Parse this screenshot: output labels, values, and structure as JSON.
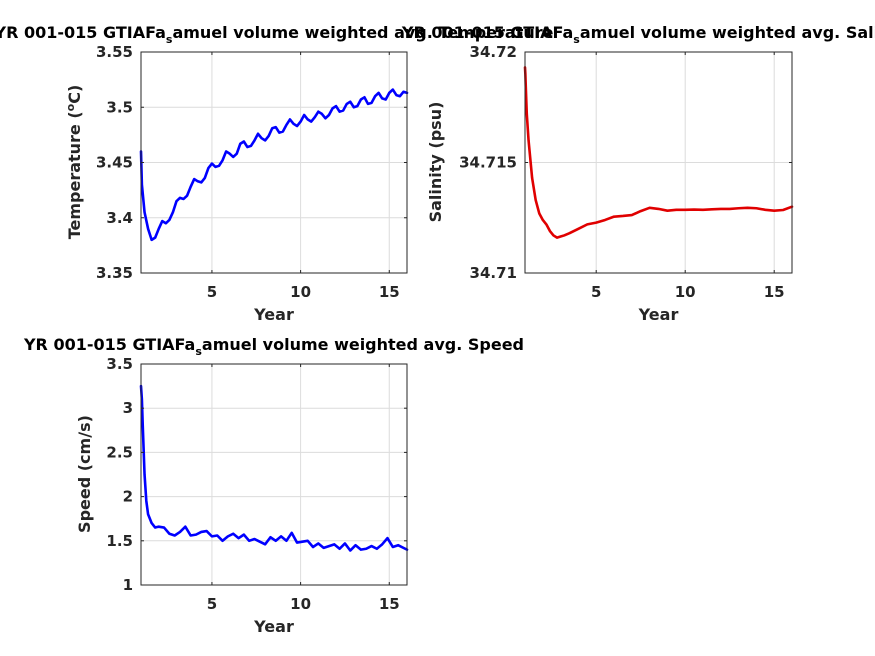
{
  "figure": {
    "background": "#ffffff",
    "axis_color": "#262626",
    "grid_color": "#dcdcdc"
  },
  "chart_data": [
    {
      "type": "line",
      "title": "YR 001-015 GTIAFa",
      "title_sub": "s",
      "title_rest": "amuel volume weighted avg. Temperature",
      "xlabel": "Year",
      "ylabel": "Temperature (",
      "ylabel_sup": "o",
      "ylabel_rest": "C)",
      "xlim": [
        1,
        16
      ],
      "ylim": [
        3.35,
        3.55
      ],
      "xticks": [
        5,
        10,
        15
      ],
      "xtick_labels": [
        "5",
        "10",
        "15"
      ],
      "yticks": [
        3.35,
        3.4,
        3.45,
        3.5,
        3.55
      ],
      "ytick_labels": [
        "3.35",
        "3.4",
        "3.45",
        "3.5",
        "3.55"
      ],
      "grid": true,
      "series": [
        {
          "color": "#0000ff",
          "x": [
            1,
            1.05,
            1.2,
            1.4,
            1.6,
            1.8,
            2,
            2.2,
            2.4,
            2.6,
            2.8,
            3,
            3.2,
            3.4,
            3.6,
            3.8,
            4,
            4.2,
            4.4,
            4.6,
            4.8,
            5,
            5.2,
            5.4,
            5.6,
            5.8,
            6,
            6.2,
            6.4,
            6.6,
            6.8,
            7,
            7.2,
            7.4,
            7.6,
            7.8,
            8,
            8.2,
            8.4,
            8.6,
            8.8,
            9,
            9.2,
            9.4,
            9.6,
            9.8,
            10,
            10.2,
            10.4,
            10.6,
            10.8,
            11,
            11.2,
            11.4,
            11.6,
            11.8,
            12,
            12.2,
            12.4,
            12.6,
            12.8,
            13,
            13.2,
            13.4,
            13.6,
            13.8,
            14,
            14.2,
            14.4,
            14.6,
            14.8,
            15,
            15.2,
            15.4,
            15.6,
            15.8,
            16
          ],
          "y": [
            3.46,
            3.43,
            3.405,
            3.39,
            3.38,
            3.382,
            3.39,
            3.397,
            3.395,
            3.398,
            3.405,
            3.415,
            3.418,
            3.417,
            3.42,
            3.428,
            3.435,
            3.433,
            3.432,
            3.436,
            3.445,
            3.449,
            3.446,
            3.447,
            3.452,
            3.46,
            3.458,
            3.455,
            3.458,
            3.467,
            3.469,
            3.464,
            3.465,
            3.47,
            3.476,
            3.472,
            3.47,
            3.474,
            3.481,
            3.482,
            3.477,
            3.478,
            3.484,
            3.489,
            3.485,
            3.483,
            3.487,
            3.493,
            3.489,
            3.487,
            3.491,
            3.496,
            3.494,
            3.49,
            3.493,
            3.499,
            3.501,
            3.496,
            3.497,
            3.503,
            3.505,
            3.5,
            3.501,
            3.507,
            3.509,
            3.503,
            3.504,
            3.51,
            3.513,
            3.508,
            3.507,
            3.513,
            3.516,
            3.511,
            3.51,
            3.514,
            3.513
          ]
        }
      ]
    },
    {
      "type": "line",
      "title": "YR 001-015 GTIAFa",
      "title_sub": "s",
      "title_rest": "amuel volume weighted avg. Salinity",
      "xlabel": "Year",
      "ylabel": "Salinity (psu)",
      "xlim": [
        1,
        16
      ],
      "ylim": [
        34.71,
        34.72
      ],
      "xticks": [
        5,
        10,
        15
      ],
      "xtick_labels": [
        "5",
        "10",
        "15"
      ],
      "yticks": [
        34.71,
        34.715,
        34.72
      ],
      "ytick_labels": [
        "34.71",
        "34.715",
        "34.72"
      ],
      "grid": true,
      "series": [
        {
          "color": "#e00000",
          "x": [
            1,
            1.02,
            1.05,
            1.1,
            1.2,
            1.4,
            1.6,
            1.8,
            2,
            2.2,
            2.4,
            2.6,
            2.8,
            3,
            3.2,
            3.5,
            4,
            4.5,
            5,
            5.5,
            6,
            6.5,
            7,
            7.5,
            8,
            8.5,
            9,
            9.5,
            10,
            10.5,
            11,
            11.5,
            12,
            12.5,
            13,
            13.5,
            14,
            14.5,
            15,
            15.5,
            16
          ],
          "y": [
            34.7193,
            34.719,
            34.7183,
            34.7172,
            34.716,
            34.7143,
            34.7133,
            34.7127,
            34.7124,
            34.7122,
            34.7119,
            34.7117,
            34.7116,
            34.71165,
            34.7117,
            34.7118,
            34.712,
            34.7122,
            34.71228,
            34.7124,
            34.71255,
            34.71258,
            34.71262,
            34.7128,
            34.71295,
            34.7129,
            34.71282,
            34.71286,
            34.71286,
            34.71287,
            34.71286,
            34.71288,
            34.7129,
            34.7129,
            34.71293,
            34.71295,
            34.71293,
            34.71286,
            34.71282,
            34.71285,
            34.713
          ]
        }
      ]
    },
    {
      "type": "line",
      "title": "YR 001-015 GTIAFa",
      "title_sub": "s",
      "title_rest": "amuel volume weighted avg. Speed",
      "xlabel": "Year",
      "ylabel": "Speed (cm/s)",
      "xlim": [
        1,
        16
      ],
      "ylim": [
        1,
        3.5
      ],
      "xticks": [
        5,
        10,
        15
      ],
      "xtick_labels": [
        "5",
        "10",
        "15"
      ],
      "yticks": [
        1,
        1.5,
        2,
        2.5,
        3,
        3.5
      ],
      "ytick_labels": [
        "1",
        "1.5",
        "2",
        "2.5",
        "3",
        "3.5"
      ],
      "grid": true,
      "series": [
        {
          "color": "#0000ff",
          "x": [
            1,
            1.05,
            1.1,
            1.2,
            1.3,
            1.4,
            1.6,
            1.8,
            2,
            2.3,
            2.6,
            2.9,
            3.2,
            3.5,
            3.8,
            4.1,
            4.4,
            4.7,
            5,
            5.3,
            5.6,
            5.9,
            6.2,
            6.5,
            6.8,
            7.1,
            7.4,
            7.7,
            8,
            8.3,
            8.6,
            8.9,
            9.2,
            9.5,
            9.8,
            10.1,
            10.4,
            10.7,
            11,
            11.3,
            11.6,
            11.9,
            12.2,
            12.5,
            12.8,
            13.1,
            13.4,
            13.7,
            14,
            14.3,
            14.6,
            14.9,
            15.2,
            15.5,
            15.8,
            16
          ],
          "y": [
            3.25,
            3.1,
            2.8,
            2.25,
            1.95,
            1.8,
            1.7,
            1.65,
            1.66,
            1.65,
            1.58,
            1.56,
            1.6,
            1.66,
            1.56,
            1.57,
            1.6,
            1.61,
            1.55,
            1.56,
            1.5,
            1.55,
            1.58,
            1.53,
            1.57,
            1.5,
            1.52,
            1.49,
            1.46,
            1.54,
            1.5,
            1.55,
            1.5,
            1.59,
            1.48,
            1.49,
            1.5,
            1.43,
            1.47,
            1.42,
            1.44,
            1.46,
            1.41,
            1.47,
            1.39,
            1.45,
            1.4,
            1.41,
            1.44,
            1.41,
            1.46,
            1.53,
            1.43,
            1.45,
            1.42,
            1.4
          ]
        }
      ]
    }
  ]
}
